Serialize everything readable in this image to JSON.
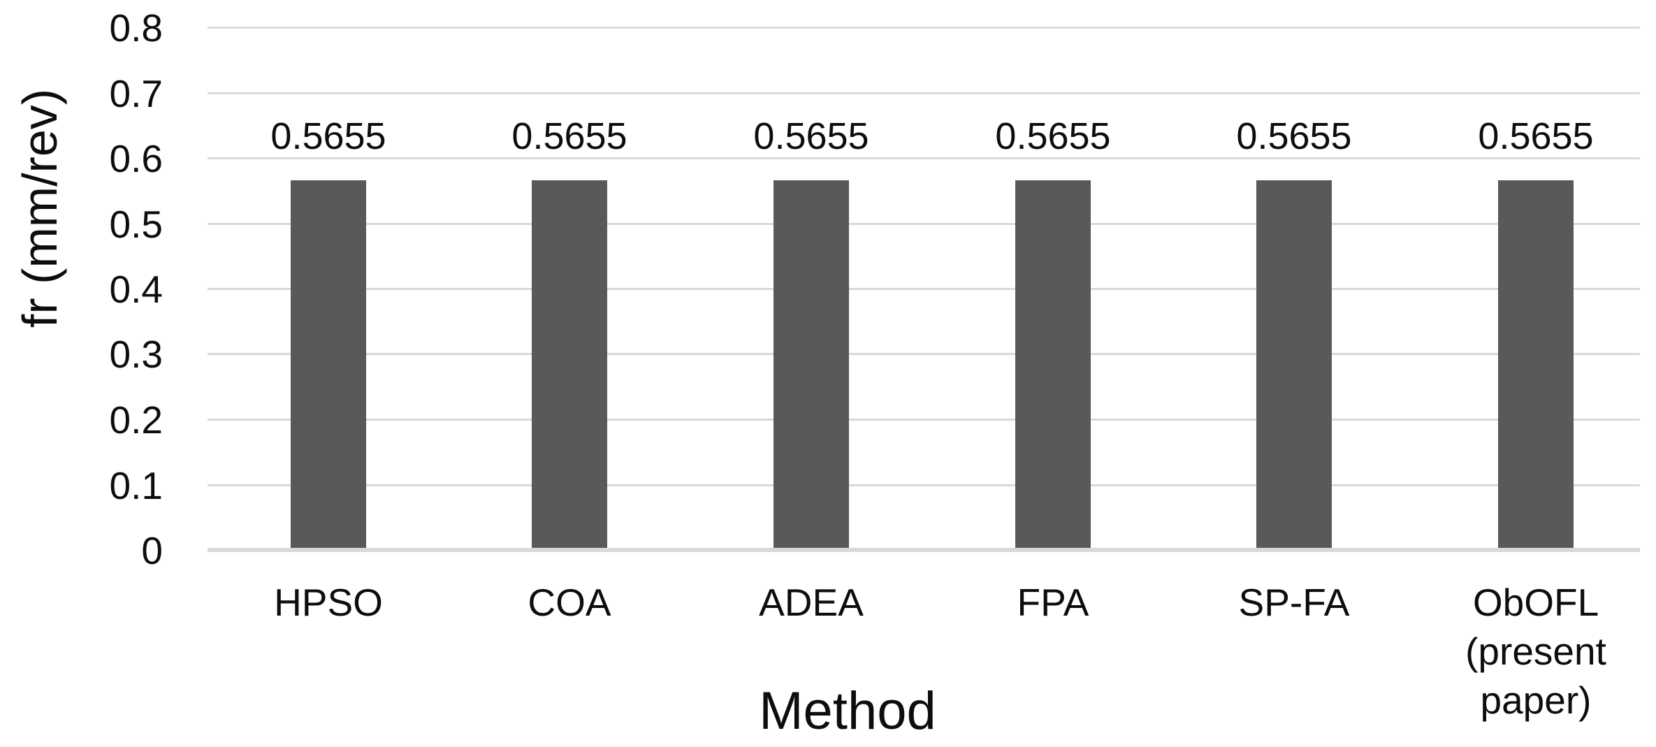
{
  "figure": {
    "background": "#ffffff"
  },
  "chart_data": {
    "type": "bar",
    "title": "",
    "xlabel": "Method",
    "ylabel": "fr (mm/rev)",
    "categories": [
      "HPSO",
      "COA",
      "ADEA",
      "FPA",
      "SP-FA",
      "ObOFL (present paper)"
    ],
    "category_lines": [
      [
        "HPSO"
      ],
      [
        "COA"
      ],
      [
        "ADEA"
      ],
      [
        "FPA"
      ],
      [
        "SP-FA"
      ],
      [
        "ObOFL",
        "(present",
        "paper)"
      ]
    ],
    "values": [
      0.5655,
      0.5655,
      0.5655,
      0.5655,
      0.5655,
      0.5655
    ],
    "data_labels": [
      "0.5655",
      "0.5655",
      "0.5655",
      "0.5655",
      "0.5655",
      "0.5655"
    ],
    "ylim": [
      0,
      0.8
    ],
    "ytick_step": 0.1,
    "yticks": [
      "0",
      "0.1",
      "0.2",
      "0.3",
      "0.4",
      "0.5",
      "0.6",
      "0.7",
      "0.8"
    ],
    "grid": true,
    "legend": "none",
    "colors": {
      "bar": "#595959",
      "gridline": "#d9d9d9",
      "axis_line": "#d9d9d9",
      "text": "#0d0d0d",
      "background": "#ffffff"
    }
  }
}
